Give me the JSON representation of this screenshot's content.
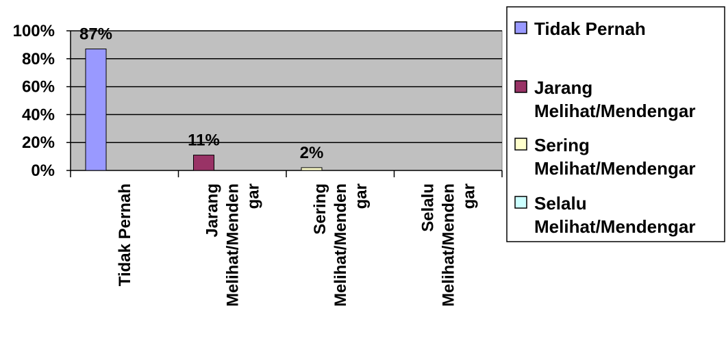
{
  "chart_data": {
    "type": "bar",
    "categories": [
      [
        "Tidak Pernah"
      ],
      [
        "Jarang",
        "Melihat/Menden",
        "gar"
      ],
      [
        "Sering",
        "Melihat/Menden",
        "gar"
      ],
      [
        "Selalu",
        "Melihat/Menden",
        "gar"
      ]
    ],
    "values": [
      87,
      11,
      2,
      0
    ],
    "data_labels": [
      "87%",
      "11%",
      "2%",
      ""
    ],
    "ylim": [
      0,
      100
    ],
    "yticks": [
      0,
      20,
      40,
      60,
      80,
      100
    ],
    "ytick_labels": [
      "0%",
      "20%",
      "40%",
      "60%",
      "80%",
      "100%"
    ],
    "grid": true,
    "plot_background": "#c0c0c0",
    "bar_colors": [
      "#9999ff",
      "#993366",
      "#ffffcc",
      "#ccffff"
    ],
    "legend": {
      "position": "right",
      "entries": [
        [
          "Tidak Pernah"
        ],
        [
          "Jarang",
          "Melihat/Mendengar"
        ],
        [
          "Sering",
          "Melihat/Mendengar"
        ],
        [
          "Selalu",
          "Melihat/Mendengar"
        ]
      ]
    }
  }
}
